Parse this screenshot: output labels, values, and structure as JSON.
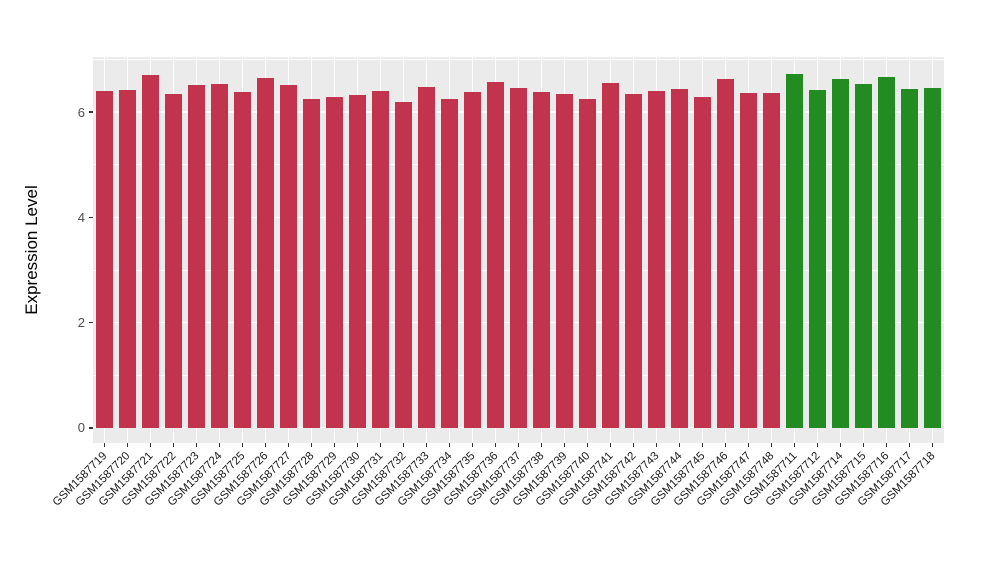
{
  "figure": {
    "background": "#FFFFFF",
    "panel_background": "#EBEBEB",
    "grid_color": "#FFFFFF",
    "tick_mark_color": "#333333",
    "y_axis_text_color": "#4D4D4D",
    "x_axis_text_color": "#1A1A1A",
    "axis_title_color": "#000000"
  },
  "chart_data": {
    "type": "bar",
    "title": "",
    "xlabel": "",
    "ylabel": "Expression Level",
    "ylim": [
      -0.29,
      7.05
    ],
    "yticks_major": [
      0,
      2,
      4,
      6
    ],
    "yticks_minor": [
      1,
      3,
      5,
      7
    ],
    "grid": "on",
    "legend": "none",
    "bar_width_fraction": 0.72,
    "x_tick_rotation_deg": 45,
    "group_colors": {
      "red": "#C2344D",
      "green": "#228B22"
    },
    "categories": [
      "GSM1587719",
      "GSM1587720",
      "GSM1587721",
      "GSM1587722",
      "GSM1587723",
      "GSM1587724",
      "GSM1587725",
      "GSM1587726",
      "GSM1587727",
      "GSM1587728",
      "GSM1587729",
      "GSM1587730",
      "GSM1587731",
      "GSM1587732",
      "GSM1587733",
      "GSM1587734",
      "GSM1587735",
      "GSM1587736",
      "GSM1587737",
      "GSM1587738",
      "GSM1587739",
      "GSM1587740",
      "GSM1587741",
      "GSM1587742",
      "GSM1587743",
      "GSM1587744",
      "GSM1587745",
      "GSM1587746",
      "GSM1587747",
      "GSM1587748",
      "GSM1587711",
      "GSM1587712",
      "GSM1587714",
      "GSM1587715",
      "GSM1587716",
      "GSM1587717",
      "GSM1587718"
    ],
    "values": [
      6.4,
      6.42,
      6.71,
      6.35,
      6.52,
      6.54,
      6.39,
      6.66,
      6.51,
      6.25,
      6.28,
      6.32,
      6.4,
      6.2,
      6.48,
      6.25,
      6.39,
      6.57,
      6.46,
      6.38,
      6.35,
      6.25,
      6.55,
      6.35,
      6.41,
      6.44,
      6.29,
      6.63,
      6.37,
      6.37,
      6.72,
      6.43,
      6.64,
      6.54,
      6.67,
      6.45,
      6.47
    ],
    "bar_groups": [
      "red",
      "red",
      "red",
      "red",
      "red",
      "red",
      "red",
      "red",
      "red",
      "red",
      "red",
      "red",
      "red",
      "red",
      "red",
      "red",
      "red",
      "red",
      "red",
      "red",
      "red",
      "red",
      "red",
      "red",
      "red",
      "red",
      "red",
      "red",
      "red",
      "red",
      "green",
      "green",
      "green",
      "green",
      "green",
      "green",
      "green"
    ]
  }
}
